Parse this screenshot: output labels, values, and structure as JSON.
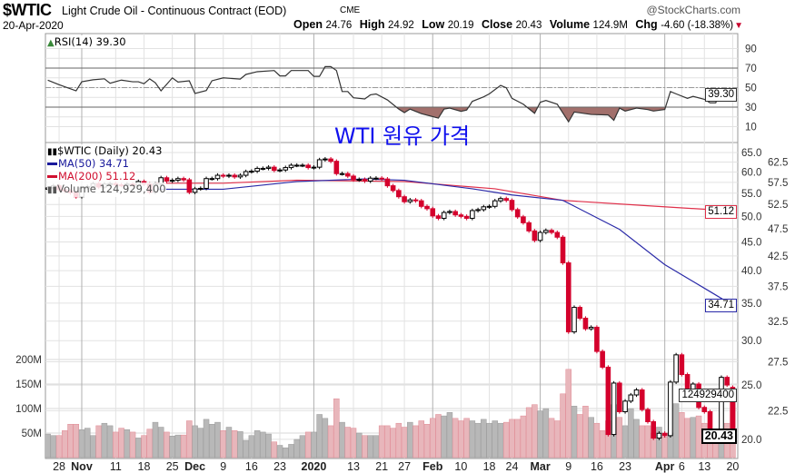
{
  "header": {
    "symbol": "$WTIC",
    "description": "Light Crude Oil - Continuous Contract (EOD)",
    "exchange": "CME",
    "brand": "@StockCharts.com",
    "date": "20-Apr-2020",
    "open_label": "Open",
    "open": "24.76",
    "high_label": "High",
    "high": "24.92",
    "low_label": "Low",
    "low": "20.19",
    "close_label": "Close",
    "close": "20.43",
    "volume_label": "Volume",
    "volume": "124.9M",
    "chg_label": "Chg",
    "chg": "-4.60 (-18.38%)",
    "down_arrow": "▼"
  },
  "overlay_title": "WTI 원유 가격",
  "legend": {
    "rsi": "RSI(14) 39.30",
    "main": "$WTIC (Daily) 20.43",
    "ma50": "MA(50) 34.71",
    "ma200": "MA(200) 51.12",
    "volume": "Volume 124,929,400"
  },
  "tags": {
    "rsi": "39.30",
    "ma200": "51.12",
    "ma50": "34.71",
    "volume": "124929400",
    "close": "20.43"
  },
  "colors": {
    "up": "#000000",
    "down": "#d4002c",
    "ma50": "#2a2aa8",
    "ma200": "#e0304a",
    "vol_up": "#b8b8b8",
    "vol_down": "#e8b6bb",
    "rsi_fill_low": "#a2706c"
  },
  "chart_data": {
    "type": "candlestick",
    "title": "$WTIC Light Crude Oil - Continuous Contract (EOD)",
    "x_unit": "trading-day index (0 = 24-Oct-2019, 121 = 20-Apr-2020)",
    "x_ticks": [
      {
        "i": 2,
        "label": "28",
        "major": false
      },
      {
        "i": 6,
        "label": "Nov",
        "major": true
      },
      {
        "i": 12,
        "label": "11",
        "major": false
      },
      {
        "i": 17,
        "label": "18",
        "major": false
      },
      {
        "i": 22,
        "label": "25",
        "major": false
      },
      {
        "i": 26,
        "label": "Dec",
        "major": true
      },
      {
        "i": 31,
        "label": "9",
        "major": false
      },
      {
        "i": 36,
        "label": "16",
        "major": false
      },
      {
        "i": 41,
        "label": "23",
        "major": false
      },
      {
        "i": 47,
        "label": "2020",
        "major": true
      },
      {
        "i": 54,
        "label": "13",
        "major": false
      },
      {
        "i": 59,
        "label": "21",
        "major": false
      },
      {
        "i": 63,
        "label": "27",
        "major": false
      },
      {
        "i": 68,
        "label": "Feb",
        "major": true
      },
      {
        "i": 73,
        "label": "10",
        "major": false
      },
      {
        "i": 78,
        "label": "18",
        "major": false
      },
      {
        "i": 82,
        "label": "24",
        "major": false
      },
      {
        "i": 87,
        "label": "Mar",
        "major": true
      },
      {
        "i": 92,
        "label": "9",
        "major": false
      },
      {
        "i": 97,
        "label": "16",
        "major": false
      },
      {
        "i": 102,
        "label": "23",
        "major": false
      },
      {
        "i": 109,
        "label": "Apr",
        "major": true
      },
      {
        "i": 112,
        "label": "6",
        "major": false
      },
      {
        "i": 116,
        "label": "13",
        "major": false
      },
      {
        "i": 121,
        "label": "20",
        "major": false
      }
    ],
    "price": {
      "scale": "log",
      "ticks": [
        "65.0",
        "62.5",
        "60.0",
        "57.5",
        "55.0",
        "52.5",
        "50.0",
        "47.5",
        "45.0",
        "42.5",
        "40.0",
        "37.5",
        "35.0",
        "32.5",
        "30.0",
        "27.5",
        "25.0",
        "22.5",
        "20.0"
      ],
      "first_open": 55.9,
      "last_open": 24.76,
      "closes": [
        56.2,
        56.7,
        55.8,
        55.5,
        55.1,
        54.2,
        56.2,
        56.5,
        57.2,
        56.4,
        57.1,
        57.2,
        56.9,
        56.8,
        57.1,
        56.8,
        57.7,
        57.1,
        55.2,
        57.1,
        58.6,
        57.8,
        58.0,
        58.4,
        58.1,
        55.2,
        56.0,
        56.1,
        58.4,
        58.4,
        59.2,
        59.0,
        59.2,
        58.8,
        59.2,
        60.1,
        60.2,
        60.9,
        60.9,
        61.2,
        60.4,
        60.5,
        61.1,
        61.7,
        61.7,
        61.7,
        61.1,
        61.2,
        63.1,
        63.3,
        62.7,
        59.6,
        59.6,
        59.0,
        58.1,
        58.2,
        57.8,
        58.5,
        58.5,
        58.3,
        56.7,
        55.6,
        54.2,
        53.1,
        53.5,
        53.3,
        52.1,
        51.6,
        50.1,
        49.6,
        50.8,
        51.0,
        50.3,
        50.0,
        49.6,
        51.2,
        51.4,
        52.0,
        52.1,
        53.3,
        53.8,
        53.4,
        51.4,
        49.9,
        48.7,
        47.1,
        45.3,
        46.8,
        47.2,
        46.8,
        45.9,
        41.3,
        31.1,
        34.4,
        32.9,
        31.5,
        31.7,
        28.7,
        26.9,
        20.4,
        25.2,
        22.4,
        23.4,
        24.0,
        24.5,
        22.6,
        21.5,
        20.1,
        20.5,
        20.3,
        25.3,
        28.3,
        26.1,
        23.6,
        25.1,
        22.8,
        22.4,
        20.1,
        19.9,
        25.8,
        25.0,
        20.43
      ]
    },
    "ma50": [
      [
        19,
        55.9
      ],
      [
        31,
        55.9
      ],
      [
        44,
        57.7
      ],
      [
        56,
        58.3
      ],
      [
        63,
        58.0
      ],
      [
        75,
        56.0
      ],
      [
        82,
        54.6
      ],
      [
        91,
        53.4
      ],
      [
        101,
        47.4
      ],
      [
        109,
        41.0
      ],
      [
        117,
        36.7
      ],
      [
        121,
        34.71
      ]
    ],
    "ma200": [
      [
        19,
        57.3
      ],
      [
        31,
        57.3
      ],
      [
        44,
        58.0
      ],
      [
        63,
        57.7
      ],
      [
        79,
        56.0
      ],
      [
        91,
        53.4
      ],
      [
        105,
        52.3
      ],
      [
        121,
        51.12
      ]
    ],
    "volume": {
      "unit": "M",
      "ticks": [
        {
          "v": 50,
          "label": "50M"
        },
        {
          "v": 100,
          "label": "100M"
        },
        {
          "v": 150,
          "label": "150M"
        },
        {
          "v": 200,
          "label": "200M"
        }
      ],
      "values": [
        48,
        45,
        45,
        55,
        68,
        68,
        57,
        60,
        45,
        65,
        70,
        65,
        52,
        60,
        57,
        52,
        40,
        45,
        58,
        72,
        62,
        52,
        44,
        46,
        46,
        75,
        65,
        60,
        78,
        68,
        72,
        55,
        62,
        55,
        53,
        35,
        45,
        55,
        52,
        48,
        32,
        25,
        20,
        27,
        37,
        45,
        52,
        52,
        88,
        80,
        65,
        120,
        72,
        62,
        60,
        50,
        45,
        45,
        45,
        65,
        65,
        60,
        70,
        62,
        72,
        65,
        75,
        68,
        80,
        88,
        85,
        92,
        80,
        75,
        80,
        75,
        70,
        78,
        70,
        75,
        70,
        72,
        78,
        78,
        85,
        102,
        108,
        95,
        100,
        80,
        75,
        130,
        180,
        105,
        88,
        105,
        82,
        70,
        55,
        75,
        108,
        82,
        65,
        100,
        78,
        65,
        65,
        50,
        62,
        42,
        50,
        110,
        92,
        80,
        82,
        85,
        70,
        55,
        55,
        42,
        70,
        124.9
      ]
    },
    "rsi": {
      "period": 14,
      "ticks": [
        "90",
        "70",
        "50",
        "30",
        "10"
      ],
      "levels": [
        70,
        50,
        30
      ],
      "points": [
        [
          0,
          57.6
        ],
        [
          2,
          53
        ],
        [
          5,
          46.7
        ],
        [
          6,
          56
        ],
        [
          8,
          58
        ],
        [
          10,
          59
        ],
        [
          11,
          54.5
        ],
        [
          13,
          57.7
        ],
        [
          15,
          56
        ],
        [
          16,
          56
        ],
        [
          17,
          54
        ],
        [
          18,
          59
        ],
        [
          19,
          55
        ],
        [
          20,
          46.7
        ],
        [
          22,
          60
        ],
        [
          23,
          55.7
        ],
        [
          25,
          57
        ],
        [
          26,
          44
        ],
        [
          28,
          47
        ],
        [
          29,
          57
        ],
        [
          31,
          60
        ],
        [
          34,
          58.7
        ],
        [
          35,
          63.5
        ],
        [
          37,
          66.3
        ],
        [
          40,
          67.5
        ],
        [
          41,
          62
        ],
        [
          42,
          62
        ],
        [
          43,
          67.5
        ],
        [
          46,
          67.5
        ],
        [
          47,
          61.5
        ],
        [
          48,
          61.5
        ],
        [
          49,
          71.5
        ],
        [
          50,
          71.5
        ],
        [
          51,
          67.5
        ],
        [
          52,
          46
        ],
        [
          53,
          46
        ],
        [
          54,
          39.6
        ],
        [
          56,
          38.4
        ],
        [
          57,
          42.6
        ],
        [
          58,
          43.5
        ],
        [
          60,
          37.4
        ],
        [
          62,
          28
        ],
        [
          63,
          24.4
        ],
        [
          64,
          28
        ],
        [
          66,
          23.3
        ],
        [
          69,
          18.8
        ],
        [
          70,
          28
        ],
        [
          71,
          29
        ],
        [
          73,
          25.7
        ],
        [
          74,
          27
        ],
        [
          75,
          35.9
        ],
        [
          77,
          40.5
        ],
        [
          78,
          43.6
        ],
        [
          80,
          52.3
        ],
        [
          81,
          49.8
        ],
        [
          82,
          39
        ],
        [
          84,
          33
        ],
        [
          86,
          23.7
        ],
        [
          87,
          35
        ],
        [
          88,
          36.8
        ],
        [
          90,
          33
        ],
        [
          92,
          15
        ],
        [
          93,
          25
        ],
        [
          96,
          22.5
        ],
        [
          99,
          22
        ],
        [
          100,
          16.5
        ],
        [
          101,
          29
        ],
        [
          102,
          26
        ],
        [
          104,
          29
        ],
        [
          106,
          27.5
        ],
        [
          107,
          26
        ],
        [
          109,
          27.6
        ],
        [
          110,
          46
        ],
        [
          111,
          43.6
        ],
        [
          113,
          39
        ],
        [
          114,
          41
        ],
        [
          116,
          38
        ],
        [
          117,
          34.4
        ],
        [
          118,
          34.4
        ],
        [
          119,
          47.6
        ],
        [
          120,
          46.4
        ],
        [
          121,
          39.3
        ]
      ]
    }
  }
}
